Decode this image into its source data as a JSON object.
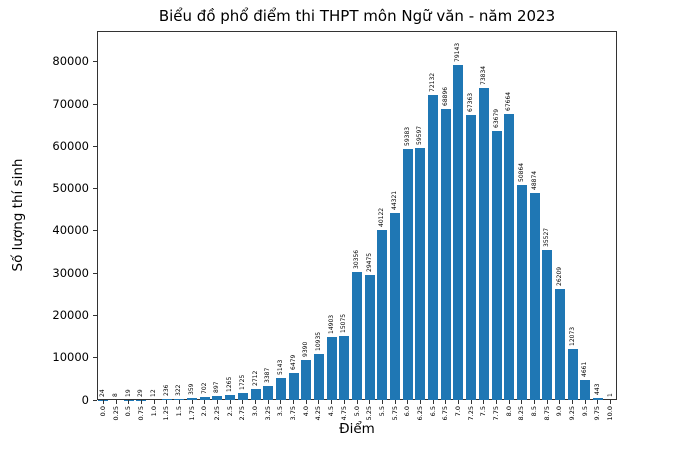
{
  "chart_data": {
    "type": "bar",
    "title": "Biểu đồ phổ điểm thi THPT môn Ngữ văn - năm 2023",
    "xlabel": "Điểm",
    "ylabel": "Số lượng thí sinh",
    "categories": [
      "0.0",
      "0.25",
      "0.5",
      "0.75",
      "1.0",
      "1.25",
      "1.5",
      "1.75",
      "2.0",
      "2.25",
      "2.5",
      "2.75",
      "3.0",
      "3.25",
      "3.5",
      "3.75",
      "4.0",
      "4.25",
      "4.5",
      "4.75",
      "5.0",
      "5.25",
      "5.5",
      "5.75",
      "6.0",
      "6.25",
      "6.5",
      "6.75",
      "7.0",
      "7.25",
      "7.5",
      "7.75",
      "8.0",
      "8.25",
      "8.5",
      "8.75",
      "9.0",
      "9.25",
      "9.5",
      "9.75",
      "10.0"
    ],
    "values": [
      24,
      8,
      19,
      29,
      12,
      236,
      322,
      359,
      702,
      897,
      1265,
      1725,
      2712,
      3387,
      5143,
      6479,
      9390,
      10935,
      14903,
      15075,
      30356,
      29475,
      40122,
      44321,
      59383,
      59597,
      72132,
      68896,
      79143,
      67363,
      73834,
      63679,
      67664,
      50864,
      48874,
      35527,
      26209,
      12073,
      4661,
      443,
      1
    ],
    "bar_labels_shown": true,
    "bar_color": "#1f77b4",
    "axis_color": "#333333",
    "yticks": [
      0,
      10000,
      20000,
      30000,
      40000,
      50000,
      60000,
      70000,
      80000
    ],
    "ylim": [
      0,
      87300
    ],
    "grid": false,
    "legend": false
  }
}
